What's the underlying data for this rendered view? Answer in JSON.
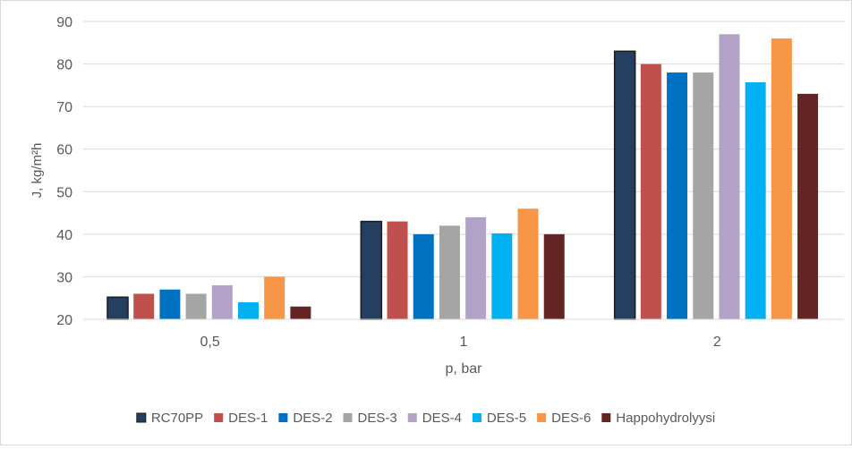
{
  "chart_data": {
    "type": "bar",
    "title": "",
    "xlabel": "p, bar",
    "ylabel": "J, kg/m²h",
    "categories": [
      "0,5",
      "1",
      "2"
    ],
    "ylim": [
      20,
      90
    ],
    "yticks": [
      "20",
      "30",
      "40",
      "50",
      "60",
      "70",
      "80",
      "90"
    ],
    "ytick_values": [
      20,
      30,
      40,
      50,
      60,
      70,
      80,
      90
    ],
    "grid": true,
    "legend_position": "bottom",
    "series": [
      {
        "name": "RC70PP",
        "color": "#243f60",
        "values": [
          25.2,
          43,
          83
        ]
      },
      {
        "name": "DES-1",
        "color": "#c0504d",
        "values": [
          26,
          43,
          80
        ]
      },
      {
        "name": "DES-2",
        "color": "#0070c0",
        "values": [
          27,
          40,
          78
        ]
      },
      {
        "name": "DES-3",
        "color": "#a5a5a5",
        "values": [
          26,
          42,
          78
        ]
      },
      {
        "name": "DES-4",
        "color": "#b3a2c7",
        "values": [
          28,
          44,
          87
        ]
      },
      {
        "name": "DES-5",
        "color": "#00b0f0",
        "values": [
          24,
          40.2,
          75.7
        ]
      },
      {
        "name": "DES-6",
        "color": "#f79646",
        "values": [
          30,
          46,
          86
        ]
      },
      {
        "name": "Happohydrolyysi",
        "color": "#632523",
        "values": [
          23,
          40,
          73
        ]
      }
    ]
  }
}
